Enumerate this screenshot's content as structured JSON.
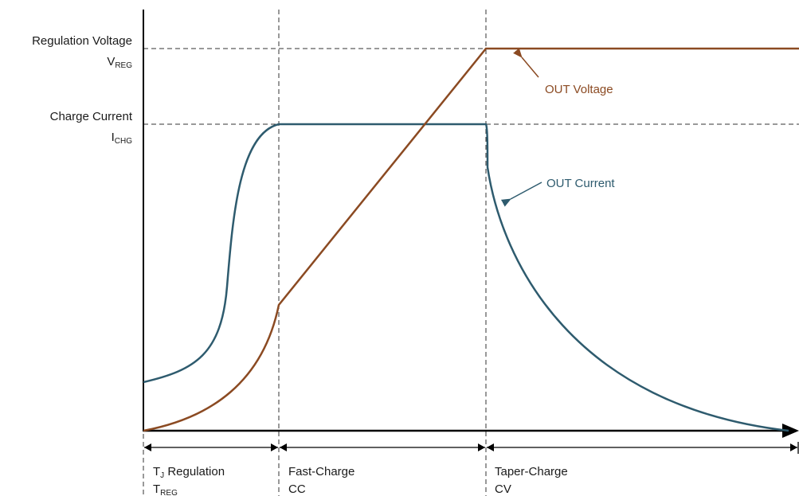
{
  "colors": {
    "voltage": "#8b4a22",
    "current": "#2e5b6e",
    "axis": "#000000",
    "guide": "#333333"
  },
  "y_labels": {
    "vreg_title": "Regulation Voltage",
    "vreg_sym": "V",
    "vreg_sub": "REG",
    "ichg_title": "Charge Current",
    "ichg_sym": "I",
    "ichg_sub": "CHG"
  },
  "curves": {
    "voltage_label": "OUT Voltage",
    "current_label": "OUT Current"
  },
  "phases": [
    {
      "line1_sym": "T",
      "line1_sub": "J",
      "line1_rest": " Regulation",
      "line2_sym": "T",
      "line2_sub": "REG"
    },
    {
      "line1": "Fast-Charge",
      "line2": "CC"
    },
    {
      "line1": "Taper-Charge",
      "line2": "CV"
    }
  ]
}
